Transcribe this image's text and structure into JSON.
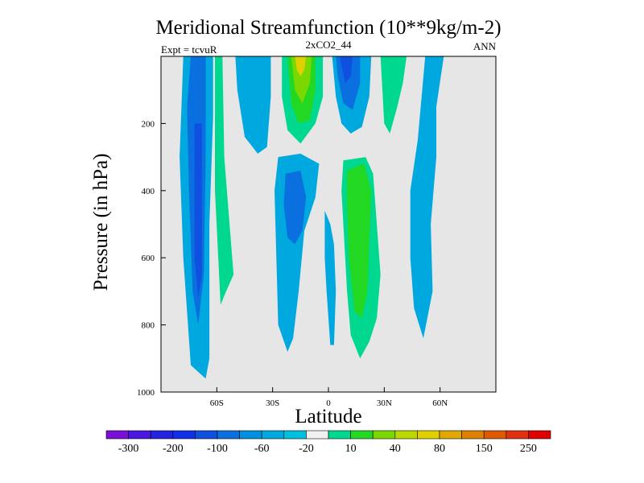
{
  "chart_data": {
    "type": "contour",
    "title": "Meridional Streamfunction (10**9kg/m-2)",
    "subtitle": "2xCO2_44",
    "left_label": "Expt = tcvuR",
    "right_label": "ANN",
    "xlabel": "Latitude",
    "ylabel": "Pressure (in hPa)",
    "xlim": [
      -90,
      90
    ],
    "ylim": [
      1000,
      0
    ],
    "xticks": [
      {
        "value": -60,
        "label": "60S"
      },
      {
        "value": -30,
        "label": "30S"
      },
      {
        "value": 0,
        "label": "0"
      },
      {
        "value": 30,
        "label": "30N"
      },
      {
        "value": 60,
        "label": "60N"
      }
    ],
    "yticks": [
      {
        "value": 200,
        "label": "200"
      },
      {
        "value": 400,
        "label": "400"
      },
      {
        "value": 600,
        "label": "600"
      },
      {
        "value": 800,
        "label": "800"
      },
      {
        "value": 1000,
        "label": "1000"
      }
    ],
    "background_color": "#e6e6e6",
    "colorbar": {
      "colors": [
        "#7a10d8",
        "#4a16e0",
        "#2424e0",
        "#1030e8",
        "#1050e0",
        "#0a70e0",
        "#0090e0",
        "#00a8e0",
        "#00c0e0",
        "#f0f0f0",
        "#00d890",
        "#22d822",
        "#7ad800",
        "#bcd800",
        "#e0d000",
        "#e0a800",
        "#e08000",
        "#e05800",
        "#e03010",
        "#e00000"
      ],
      "labels": [
        {
          "after_box": 1,
          "text": "-300"
        },
        {
          "after_box": 3,
          "text": "-200"
        },
        {
          "after_box": 5,
          "text": "-100"
        },
        {
          "after_box": 7,
          "text": "-60"
        },
        {
          "after_box": 9,
          "text": "-20"
        },
        {
          "after_box": 11,
          "text": "10"
        },
        {
          "after_box": 13,
          "text": "40"
        },
        {
          "after_box": 15,
          "text": "80"
        },
        {
          "after_box": 17,
          "text": "150"
        },
        {
          "after_box": 19,
          "text": "250"
        }
      ]
    },
    "regions": [
      {
        "level": -20,
        "color": "#00a8e0",
        "polygon": [
          [
            -78,
            0
          ],
          [
            -62,
            0
          ],
          [
            -62,
            180
          ],
          [
            -64,
            500
          ],
          [
            -64,
            900
          ],
          [
            -66,
            960
          ],
          [
            -74,
            920
          ],
          [
            -78,
            600
          ],
          [
            -80,
            300
          ]
        ]
      },
      {
        "level": -60,
        "color": "#0a70e0",
        "polygon": [
          [
            -74,
            0
          ],
          [
            -66,
            0
          ],
          [
            -66,
            300
          ],
          [
            -67,
            650
          ],
          [
            -70,
            800
          ],
          [
            -73,
            700
          ],
          [
            -75,
            400
          ],
          [
            -76,
            150
          ]
        ]
      },
      {
        "level": -100,
        "color": "#1050e0",
        "polygon": [
          [
            -72,
            200
          ],
          [
            -68,
            200
          ],
          [
            -68,
            650
          ],
          [
            -70,
            720
          ],
          [
            -72,
            600
          ]
        ]
      },
      {
        "level": 10,
        "color": "#00d890",
        "polygon": [
          [
            -61,
            0
          ],
          [
            -57,
            0
          ],
          [
            -56,
            300
          ],
          [
            -51,
            650
          ],
          [
            -55,
            700
          ],
          [
            -58,
            740
          ],
          [
            -61,
            400
          ]
        ]
      },
      {
        "level": -20,
        "color": "#00a8e0",
        "polygon": [
          [
            -50,
            0
          ],
          [
            -31,
            0
          ],
          [
            -31,
            120
          ],
          [
            -33,
            270
          ],
          [
            -38,
            290
          ],
          [
            -45,
            240
          ],
          [
            -49,
            100
          ]
        ]
      },
      {
        "level": 10,
        "color": "#00d890",
        "polygon": [
          [
            -25,
            0
          ],
          [
            -3,
            0
          ],
          [
            -3,
            120
          ],
          [
            -7,
            200
          ],
          [
            -15,
            260
          ],
          [
            -22,
            220
          ],
          [
            -25,
            120
          ]
        ]
      },
      {
        "level": 40,
        "color": "#22d822",
        "polygon": [
          [
            -22,
            0
          ],
          [
            -7,
            0
          ],
          [
            -7,
            100
          ],
          [
            -10,
            190
          ],
          [
            -16,
            200
          ],
          [
            -20,
            140
          ]
        ]
      },
      {
        "level": 80,
        "color": "#7ad800",
        "polygon": [
          [
            -20,
            0
          ],
          [
            -9,
            0
          ],
          [
            -10,
            80
          ],
          [
            -14,
            140
          ],
          [
            -18,
            100
          ]
        ]
      },
      {
        "level": 150,
        "color": "#e0d000",
        "polygon": [
          [
            -18,
            0
          ],
          [
            -12,
            0
          ],
          [
            -13,
            40
          ],
          [
            -15,
            60
          ],
          [
            -17,
            40
          ]
        ]
      },
      {
        "level": -20,
        "color": "#00a8e0",
        "polygon": [
          [
            2,
            0
          ],
          [
            23,
            0
          ],
          [
            22,
            120
          ],
          [
            18,
            210
          ],
          [
            12,
            230
          ],
          [
            7,
            200
          ],
          [
            4,
            120
          ]
        ]
      },
      {
        "level": -60,
        "color": "#0a70e0",
        "polygon": [
          [
            4,
            0
          ],
          [
            17,
            0
          ],
          [
            17,
            80
          ],
          [
            13,
            160
          ],
          [
            8,
            140
          ],
          [
            5,
            60
          ]
        ]
      },
      {
        "level": -100,
        "color": "#1050e0",
        "polygon": [
          [
            6,
            0
          ],
          [
            13,
            0
          ],
          [
            12,
            60
          ],
          [
            9,
            80
          ]
        ]
      },
      {
        "level": 10,
        "color": "#00d890",
        "polygon": [
          [
            28,
            0
          ],
          [
            42,
            0
          ],
          [
            40,
            80
          ],
          [
            37,
            150
          ],
          [
            33,
            230
          ],
          [
            30,
            200
          ],
          [
            29,
            100
          ]
        ]
      },
      {
        "level": -20,
        "color": "#00a8e0",
        "polygon": [
          [
            52,
            0
          ],
          [
            62,
            0
          ],
          [
            58,
            150
          ],
          [
            58,
            300
          ],
          [
            55,
            500
          ],
          [
            56,
            700
          ],
          [
            51,
            840
          ],
          [
            46,
            750
          ],
          [
            44,
            600
          ],
          [
            44,
            400
          ],
          [
            48,
            250
          ]
        ]
      },
      {
        "level": -20,
        "color": "#00a8e0",
        "polygon": [
          [
            -27,
            300
          ],
          [
            -15,
            290
          ],
          [
            -5,
            320
          ],
          [
            -7,
            420
          ],
          [
            -13,
            520
          ],
          [
            -16,
            700
          ],
          [
            -19,
            840
          ],
          [
            -22,
            880
          ],
          [
            -27,
            800
          ],
          [
            -28,
            600
          ],
          [
            -29,
            400
          ]
        ]
      },
      {
        "level": -60,
        "color": "#0a70e0",
        "polygon": [
          [
            -23,
            350
          ],
          [
            -15,
            340
          ],
          [
            -12,
            420
          ],
          [
            -14,
            520
          ],
          [
            -18,
            560
          ],
          [
            -22,
            540
          ],
          [
            -24,
            440
          ]
        ]
      },
      {
        "level": -20,
        "color": "#00a8e0",
        "polygon": [
          [
            -2,
            460
          ],
          [
            1,
            500
          ],
          [
            3,
            560
          ],
          [
            4,
            700
          ],
          [
            3,
            860
          ],
          [
            1,
            860
          ],
          [
            -1,
            700
          ],
          [
            -2,
            600
          ]
        ]
      },
      {
        "level": 10,
        "color": "#00d890",
        "polygon": [
          [
            8,
            310
          ],
          [
            20,
            300
          ],
          [
            24,
            350
          ],
          [
            26,
            500
          ],
          [
            28,
            650
          ],
          [
            26,
            780
          ],
          [
            22,
            850
          ],
          [
            17,
            900
          ],
          [
            12,
            830
          ],
          [
            10,
            700
          ],
          [
            8,
            500
          ],
          [
            7,
            400
          ]
        ]
      },
      {
        "level": 40,
        "color": "#22d822",
        "polygon": [
          [
            10,
            340
          ],
          [
            19,
            320
          ],
          [
            23,
            400
          ],
          [
            22,
            550
          ],
          [
            21,
            700
          ],
          [
            18,
            780
          ],
          [
            14,
            760
          ],
          [
            11,
            600
          ],
          [
            10,
            450
          ]
        ]
      }
    ]
  }
}
